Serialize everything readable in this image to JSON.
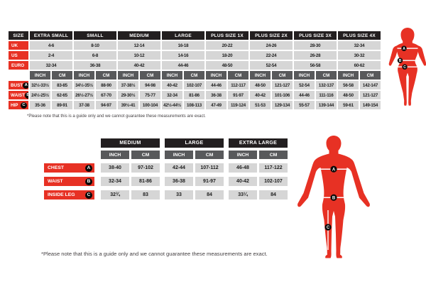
{
  "colors": {
    "accent_red": "#e73124",
    "header_black": "#231f20",
    "unit_gray": "#58595b",
    "cell_gray": "#d6d6d6"
  },
  "women_chart": {
    "corner_label": "SIZE",
    "sizes": [
      "EXTRA SMALL",
      "SMALL",
      "MEDIUM",
      "LARGE",
      "PLUS SIZE 1X",
      "PLUS SIZE 2X",
      "PLUS SIZE 3X",
      "PLUS SIZE 4X"
    ],
    "unit_headers": [
      "INCH",
      "CM"
    ],
    "region_rows": [
      {
        "label": "UK",
        "values": [
          "4-6",
          "8-10",
          "12-14",
          "16-18",
          "20-22",
          "24-26",
          "28-30",
          "32-34"
        ]
      },
      {
        "label": "US",
        "values": [
          "2-4",
          "6-8",
          "10-12",
          "14-16",
          "18-20",
          "22-24",
          "26-28",
          "30-32"
        ]
      },
      {
        "label": "EURO",
        "values": [
          "32-34",
          "36-38",
          "40-42",
          "44-46",
          "48-50",
          "52-54",
          "56-58",
          "60-62"
        ]
      }
    ],
    "measure_rows": [
      {
        "label": "BUST",
        "marker": "A",
        "cells": [
          [
            "32½-33½",
            "83-85"
          ],
          [
            "34½-35½",
            "88-90"
          ],
          [
            "37-38½",
            "94-98"
          ],
          [
            "40-42",
            "102-107"
          ],
          [
            "44-46",
            "112-117"
          ],
          [
            "48-50",
            "121-127"
          ],
          [
            "52-54",
            "132-137"
          ],
          [
            "56-58",
            "142-147"
          ]
        ]
      },
      {
        "label": "WAIST",
        "marker": "B",
        "cells": [
          [
            "24½-25½",
            "62-65"
          ],
          [
            "26½-27½",
            "67-70"
          ],
          [
            "29-30½",
            "75-77"
          ],
          [
            "32-34",
            "81-86"
          ],
          [
            "36-38",
            "91-97"
          ],
          [
            "40-42",
            "101-106"
          ],
          [
            "44-46",
            "111-116"
          ],
          [
            "48-50",
            "121-127"
          ]
        ]
      },
      {
        "label": "HIP",
        "marker": "C",
        "cells": [
          [
            "35-36",
            "89-91"
          ],
          [
            "37-38",
            "94-97"
          ],
          [
            "39½-41",
            "100-104"
          ],
          [
            "42½-44½",
            "108-113"
          ],
          [
            "47-49",
            "119-124"
          ],
          [
            "51-53",
            "129-134"
          ],
          [
            "55-57",
            "139-144"
          ],
          [
            "59-61",
            "149-154"
          ]
        ]
      }
    ],
    "footnote": "*Please note that this is a guide only and we cannot guarantee these measurements are exact."
  },
  "men_chart": {
    "sizes": [
      "MEDIUM",
      "LARGE",
      "EXTRA LARGE"
    ],
    "unit_headers": [
      "INCH",
      "CM"
    ],
    "rows": [
      {
        "label": "CHEST",
        "marker": "A",
        "cells": [
          [
            "38-40",
            "97-102"
          ],
          [
            "42-44",
            "107-112"
          ],
          [
            "46-48",
            "117-122"
          ]
        ]
      },
      {
        "label": "WAIST",
        "marker": "B",
        "cells": [
          [
            "32-34",
            "81-86"
          ],
          [
            "36-38",
            "91-97"
          ],
          [
            "40-42",
            "102-107"
          ]
        ]
      },
      {
        "label": "INSIDE LEG",
        "marker": "C",
        "cells": [
          [
            "32¾",
            "83"
          ],
          [
            "33",
            "84"
          ],
          [
            "33¼",
            "84"
          ]
        ]
      }
    ],
    "footnote": "*Please note that this is a guide only and we cannot guarantee these measurements are exact."
  },
  "figures": {
    "female": {
      "markers": [
        "A",
        "B",
        "C"
      ]
    },
    "male": {
      "markers": [
        "A",
        "B",
        "C"
      ]
    }
  }
}
